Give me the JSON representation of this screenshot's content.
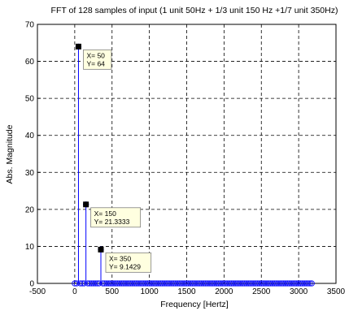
{
  "chart_data": {
    "type": "stem",
    "title": "FFT of 128 samples of  input (1 unit 50Hz + 1/3 unit 150 Hz +1/7 unit 350Hz)",
    "xlabel": "Frequency [Hertz]",
    "ylabel": "Abs. Magnitude",
    "xlim": [
      -500,
      3500
    ],
    "ylim": [
      0,
      70
    ],
    "xticks": [
      -500,
      0,
      500,
      1000,
      1500,
      2000,
      2500,
      3000,
      3500
    ],
    "yticks": [
      0,
      10,
      20,
      30,
      40,
      50,
      60,
      70
    ],
    "grid": true,
    "series": [
      {
        "color": "#0000ff",
        "x_start": 0,
        "x_step": 25,
        "count": 128,
        "peaks": [
          {
            "x": 50,
            "y": 64
          },
          {
            "x": 150,
            "y": 21.3333
          },
          {
            "x": 350,
            "y": 9.1429
          }
        ],
        "baseline_value": 0
      }
    ],
    "annotations": [
      {
        "x": 50,
        "y": 64,
        "line1": "X= 50",
        "line2": "Y= 64"
      },
      {
        "x": 150,
        "y": 21.3333,
        "line1": "X= 150",
        "line2": "Y= 21.3333"
      },
      {
        "x": 350,
        "y": 9.1429,
        "line1": "X= 350",
        "line2": "Y= 9.1429"
      }
    ]
  }
}
